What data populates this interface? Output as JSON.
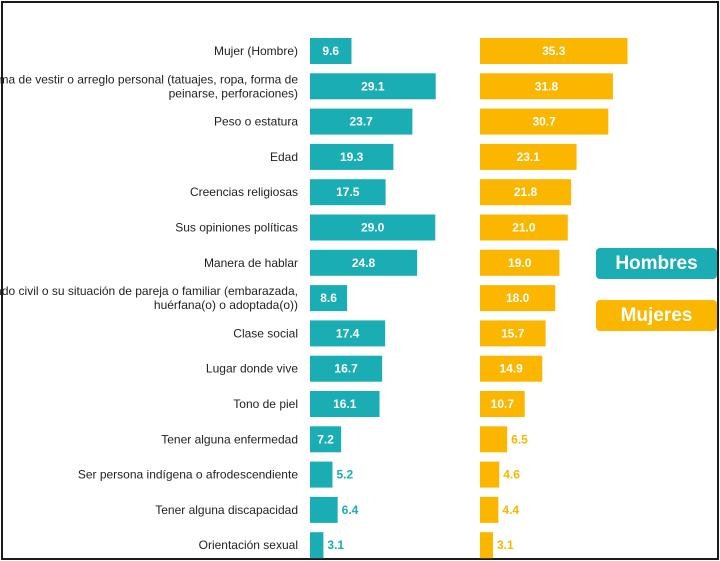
{
  "chart_data": {
    "type": "bar",
    "orientation": "horizontal",
    "title": "",
    "xlabel": "",
    "ylabel": "",
    "categories": [
      "Mujer (Hombre)",
      "Forma de vestir o arreglo personal (tatuajes, ropa, forma de peinarse, perforaciones)",
      "Peso o estatura",
      "Edad",
      "Creencias religiosas",
      "Sus opiniones políticas",
      "Manera de hablar",
      "Estado civil o su situación de pareja o familiar (embarazada, huérfana(o) o adoptada(o))",
      "Clase social",
      "Lugar donde vive",
      "Tono de piel",
      "Tener alguna enfermedad",
      "Ser persona indígena o afrodescendiente",
      "Tener alguna discapacidad",
      "Orientación sexual"
    ],
    "category_lines": [
      [
        "Mujer (Hombre)"
      ],
      [
        "Forma de vestir o arreglo personal (tatuajes, ropa, forma de",
        "peinarse, perforaciones)"
      ],
      [
        "Peso o estatura"
      ],
      [
        "Edad"
      ],
      [
        "Creencias religiosas"
      ],
      [
        "Sus opiniones políticas"
      ],
      [
        "Manera de hablar"
      ],
      [
        "Estado civil o su situación de pareja o familiar (embarazada,",
        "huérfana(o) o adoptada(o))"
      ],
      [
        "Clase social"
      ],
      [
        "Lugar donde vive"
      ],
      [
        "Tono de piel"
      ],
      [
        "Tener alguna enfermedad"
      ],
      [
        "Ser persona indígena o afrodescendiente"
      ],
      [
        "Tener alguna discapacidad"
      ],
      [
        "Orientación sexual"
      ]
    ],
    "series": [
      {
        "name": "Hombres",
        "color": "#1aaeb4",
        "values": [
          9.6,
          29.1,
          23.7,
          19.3,
          17.5,
          29.0,
          24.8,
          8.6,
          17.4,
          16.7,
          16.1,
          7.2,
          5.2,
          6.4,
          3.1
        ],
        "labels": [
          "9.6",
          "29.1",
          "23.7",
          "19.3",
          "17.5",
          "29.0",
          "24.8",
          "8.6",
          "17.4",
          "16.7",
          "16.1",
          "7.2",
          "5.2",
          "6.4",
          "3.1"
        ]
      },
      {
        "name": "Mujeres",
        "color": "#fbb600",
        "values": [
          35.3,
          31.8,
          30.7,
          23.1,
          21.8,
          21.0,
          19.0,
          18.0,
          15.7,
          14.9,
          10.7,
          6.5,
          4.6,
          4.4,
          3.1
        ],
        "labels": [
          "35.3",
          "31.8",
          "30.7",
          "23.1",
          "21.8",
          "21.0",
          "19.0",
          "18.0",
          "15.7",
          "14.9",
          "10.7",
          "6.5",
          "4.6",
          "4.4",
          "3.1"
        ]
      }
    ],
    "legend": {
      "placement": "right",
      "entries": [
        "Hombres",
        "Mujeres"
      ]
    },
    "grid": false
  }
}
